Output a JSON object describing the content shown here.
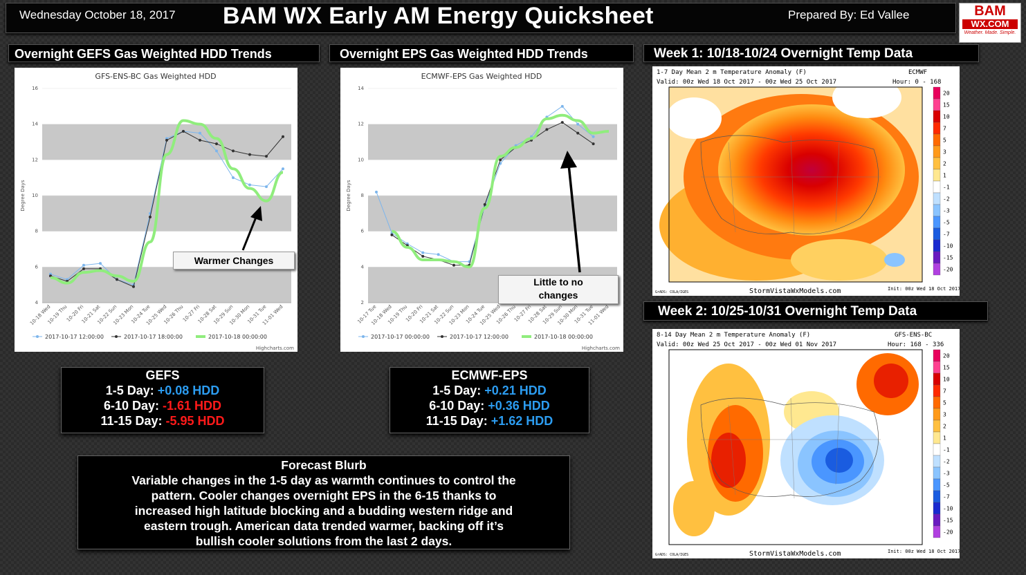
{
  "header": {
    "date": "Wednesday October 18, 2017",
    "title": "BAM WX Early AM Energy Quicksheet",
    "prepared": "Prepared By: Ed Vallee",
    "logo_top": "BAM",
    "logo_mid": "WX.COM",
    "logo_tag": "Weather. Made. Simple."
  },
  "sections": {
    "gefs_trends": "Overnight GEFS Gas Weighted HDD Trends",
    "eps_trends": "Overnight EPS Gas Weighted HDD Trends",
    "week1": "Week 1: 10/18-10/24 Overnight Temp Data",
    "week2": "Week 2: 10/25-10/31 Overnight Temp Data"
  },
  "chart_data": [
    {
      "type": "line",
      "title": "GFS-ENS-BC Gas Weighted HDD",
      "ylabel": "Degree Days",
      "ylim": [
        4,
        16
      ],
      "yticks": [
        4,
        6,
        8,
        10,
        12,
        14,
        16
      ],
      "categories": [
        "10-18 Wed",
        "10-19 Thu",
        "10-20 Fri",
        "10-21 Sat",
        "10-22 Sun",
        "10-23 Mon",
        "10-24 Tue",
        "10-25 Wed",
        "10-26 Thu",
        "10-27 Fri",
        "10-28 Sat",
        "10-29 Sun",
        "10-30 Mon",
        "10-31 Tue",
        "11-01 Wed"
      ],
      "series": [
        {
          "name": "2017-10-17 12:00:00",
          "color": "#7cb5ec",
          "values": [
            5.6,
            5.3,
            6.1,
            6.2,
            5.3,
            5.0,
            9.0,
            13.2,
            13.6,
            13.5,
            12.5,
            11.0,
            10.6,
            10.5,
            11.5
          ]
        },
        {
          "name": "2017-10-17 18:00:00",
          "color": "#333333",
          "values": [
            5.5,
            5.2,
            5.9,
            5.9,
            5.3,
            4.9,
            8.8,
            13.1,
            13.6,
            13.1,
            12.9,
            12.5,
            12.3,
            12.2,
            13.3
          ]
        },
        {
          "name": "2017-10-18 00:00:00",
          "color": "#90ed7d",
          "values": [
            5.4,
            5.1,
            5.7,
            5.8,
            5.5,
            5.2,
            7.4,
            12.3,
            14.2,
            14.0,
            13.2,
            11.5,
            10.4,
            9.7,
            11.3
          ]
        }
      ],
      "annotation": "Warmer Changes",
      "credit": "Highcharts.com"
    },
    {
      "type": "line",
      "title": "ECMWF-EPS Gas Weighted HDD",
      "ylabel": "Degree Days",
      "ylim": [
        2,
        14
      ],
      "yticks": [
        2,
        4,
        6,
        8,
        10,
        12,
        14
      ],
      "categories": [
        "10-17 Tue",
        "10-18 Wed",
        "10-19 Thu",
        "10-20 Fri",
        "10-21 Sat",
        "10-22 Sun",
        "10-23 Mon",
        "10-24 Tue",
        "10-25 Wed",
        "10-26 Thu",
        "10-27 Fri",
        "10-28 Sat",
        "10-29 Sun",
        "10-30 Mon",
        "10-31 Tue",
        "11-01 Wed"
      ],
      "series": [
        {
          "name": "2017-10-17 00:00:00",
          "color": "#7cb5ec",
          "values": [
            8.2,
            5.9,
            5.3,
            4.8,
            4.7,
            4.3,
            4.3,
            7.4,
            9.8,
            10.8,
            11.3,
            12.4,
            13.0,
            12.0,
            11.3,
            null
          ]
        },
        {
          "name": "2017-10-17 12:00:00",
          "color": "#333333",
          "values": [
            null,
            5.8,
            5.2,
            4.6,
            4.4,
            4.1,
            4.1,
            7.5,
            10.0,
            10.7,
            11.1,
            11.7,
            12.1,
            11.5,
            10.9,
            null
          ]
        },
        {
          "name": "2017-10-18 00:00:00",
          "color": "#90ed7d",
          "values": [
            null,
            6.0,
            5.1,
            4.4,
            4.4,
            4.3,
            4.0,
            7.3,
            10.2,
            10.7,
            11.2,
            12.3,
            12.5,
            12.2,
            11.5,
            11.6
          ]
        }
      ],
      "annotation_line1": "Little to no",
      "annotation_line2": "changes",
      "credit": "Highcharts.com"
    }
  ],
  "gefs_box": {
    "title": "GEFS",
    "rows": [
      {
        "label": "1-5 Day:",
        "value": "+0.08 HDD",
        "color": "blue"
      },
      {
        "label": "6-10 Day:",
        "value": "-1.61 HDD",
        "color": "red"
      },
      {
        "label": "11-15 Day:",
        "value": "-5.95 HDD",
        "color": "red"
      }
    ]
  },
  "eps_box": {
    "title": "ECMWF-EPS",
    "rows": [
      {
        "label": "1-5 Day:",
        "value": "+0.21 HDD",
        "color": "blue"
      },
      {
        "label": "6-10 Day:",
        "value": "+0.36 HDD",
        "color": "blue"
      },
      {
        "label": "11-15 Day:",
        "value": "+1.62 HDD",
        "color": "blue"
      }
    ]
  },
  "blurb": {
    "title": "Forecast Blurb",
    "lines": [
      "Variable changes in the 1-5 day as warmth continues to control the",
      "pattern. Cooler changes overnight EPS in the 6-15 thanks to",
      "increased high latitude blocking and a budding western ridge and",
      "eastern trough. American data trended warmer, backing off it’s",
      "bullish cooler solutions from the last 2 days."
    ]
  },
  "map1": {
    "title": "1-7 Day Mean 2 m Temperature Anomaly (F)",
    "model": "ECMWF",
    "valid": "Valid: 00z Wed 18 Oct 2017 - 00z Wed 25 Oct 2017",
    "hour": "Hour: 0 - 168",
    "credit": "StormVistaWxModels.com",
    "init": "Init: 00z Wed 18 Oct 2017",
    "grads": "GrADS: COLA/IGES"
  },
  "map2": {
    "title": "8-14 Day Mean 2 m Temperature Anomaly (F)",
    "model": "GFS-ENS-BC",
    "valid": "Valid: 00z Wed 25 Oct 2017 - 00z Wed 01 Nov 2017",
    "hour": "Hour: 168 - 336",
    "credit": "StormVistaWxModels.com",
    "init": "Init: 00z Wed 18 Oct 2017",
    "grads": "GrADS: COLA/IGES"
  },
  "colorbar": {
    "labels": [
      "20",
      "15",
      "10",
      "7",
      "5",
      "3",
      "2",
      "1",
      "-1",
      "-2",
      "-3",
      "-5",
      "-7",
      "-10",
      "-15",
      "-20"
    ],
    "colors": [
      "#e8005c",
      "#ff4090",
      "#d90000",
      "#ff2a00",
      "#ff6a00",
      "#ff9a1a",
      "#ffc040",
      "#ffe890",
      "#ffffff",
      "#bfe0ff",
      "#8ac4ff",
      "#4a96ff",
      "#1a5ce0",
      "#1a2ad0",
      "#6a1ac0",
      "#b040e0"
    ]
  }
}
